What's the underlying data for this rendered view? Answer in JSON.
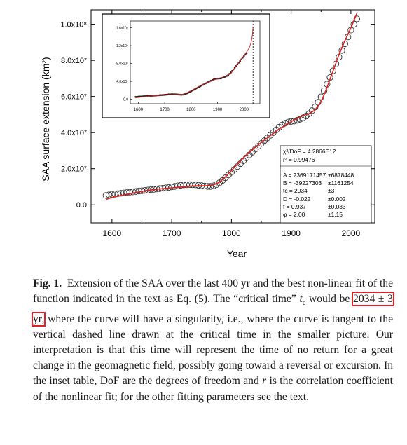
{
  "chart_data": {
    "type": "scatter",
    "xlabel": "Year",
    "ylabel": "SAA surface extension (km²)",
    "xlim": [
      1565,
      2040
    ],
    "ylim": [
      -10000000.0,
      108000000.0
    ],
    "x_ticks": [
      1600,
      1700,
      1800,
      1900,
      2000
    ],
    "x_tick_labels": [
      "1600",
      "1700",
      "1800",
      "1900",
      "2000"
    ],
    "y_ticks": [
      0,
      20000000.0,
      40000000.0,
      60000000.0,
      80000000.0,
      100000000.0
    ],
    "y_tick_labels": [
      "0.0",
      "2.0x10⁷",
      "4.0x10⁷",
      "6.0x10⁷",
      "8.0x10⁷",
      "1.0x10⁸"
    ],
    "series": [
      {
        "marker": "open-circle",
        "x": [
          1590,
          1595,
          1600,
          1605,
          1610,
          1615,
          1620,
          1625,
          1630,
          1635,
          1640,
          1645,
          1650,
          1655,
          1660,
          1665,
          1670,
          1675,
          1680,
          1685,
          1690,
          1695,
          1700,
          1705,
          1710,
          1715,
          1720,
          1725,
          1730,
          1735,
          1740,
          1745,
          1750,
          1755,
          1760,
          1765,
          1770,
          1775,
          1780,
          1785,
          1790,
          1795,
          1800,
          1805,
          1810,
          1815,
          1820,
          1825,
          1830,
          1835,
          1840,
          1845,
          1850,
          1855,
          1860,
          1865,
          1870,
          1875,
          1880,
          1885,
          1890,
          1895,
          1900,
          1905,
          1910,
          1915,
          1920,
          1925,
          1930,
          1935,
          1940,
          1945,
          1950,
          1955,
          1960,
          1965,
          1970,
          1975,
          1980,
          1985,
          1990,
          1995,
          2000,
          2005,
          2010
        ],
        "y": [
          5200000.0,
          5500000.0,
          5800000.0,
          6000000.0,
          6200000.0,
          6400000.0,
          6600000.0,
          6800000.0,
          7000000.0,
          7200000.0,
          7400000.0,
          7600000.0,
          7800000.0,
          8000000.0,
          8200000.0,
          8400000.0,
          8600000.0,
          8800000.0,
          9000000.0,
          9200000.0,
          9400000.0,
          9600000.0,
          9900000.0,
          10200000.0,
          10500000.0,
          10800000.0,
          11000000.0,
          11100000.0,
          11200000.0,
          11100000.0,
          11000000.0,
          10800000.0,
          10600000.0,
          10400000.0,
          10200000.0,
          10200000.0,
          10500000.0,
          11200000.0,
          12200000.0,
          13500000.0,
          15000000.0,
          16500000.0,
          18000000.0,
          19600000.0,
          21200000.0,
          22800000.0,
          24400000.0,
          26000000.0,
          27600000.0,
          29200000.0,
          30800000.0,
          32400000.0,
          34000000.0,
          35500000.0,
          37000000.0,
          38500000.0,
          40000000.0,
          41500000.0,
          43000000.0,
          44200000.0,
          45200000.0,
          45800000.0,
          46200000.0,
          46400000.0,
          46800000.0,
          47400000.0,
          48200000.0,
          49200000.0,
          50500000.0,
          52200000.0,
          54200000.0,
          56800000.0,
          59800000.0,
          63200000.0,
          66800000.0,
          70500000.0,
          74200000.0,
          78000000.0,
          81800000.0,
          85500000.0,
          89200000.0,
          93000000.0,
          96800000.0,
          100000000.0,
          103000000.0
        ]
      },
      {
        "marker": "line",
        "color": "#e02020",
        "x": [
          1590,
          1600,
          1620,
          1640,
          1660,
          1680,
          1700,
          1720,
          1740,
          1760,
          1770,
          1780,
          1790,
          1800,
          1810,
          1820,
          1830,
          1840,
          1850,
          1860,
          1870,
          1880,
          1890,
          1900,
          1910,
          1920,
          1930,
          1940,
          1950,
          1960,
          1970,
          1980,
          1990,
          2000,
          2010
        ],
        "y": [
          3000000.0,
          4000000.0,
          5500000.0,
          6800000.0,
          8000000.0,
          8800000.0,
          9400000.0,
          10000000.0,
          10500000.0,
          10600000.0,
          11000000.0,
          12500000.0,
          15500000.0,
          19000000.0,
          22500000.0,
          26000000.0,
          29000000.0,
          32000000.0,
          34500000.0,
          37000000.0,
          39500000.0,
          42000000.0,
          44000000.0,
          46000000.0,
          48000000.0,
          49500000.0,
          50500000.0,
          52500000.0,
          57000000.0,
          65000000.0,
          74000000.0,
          83000000.0,
          91000000.0,
          98000000.0,
          106000000.0
        ]
      }
    ],
    "fit_table": {
      "rows": [
        {
          "label": "χ²/DoF = 4.2866E12",
          "err": ""
        },
        {
          "label": "r²         = 0.99476",
          "err": ""
        },
        {
          "label": "A = 2369171457",
          "err": "±6878448"
        },
        {
          "label": "B = -39227303",
          "err": "±1161254"
        },
        {
          "label": "tc = 2034",
          "err": "±3"
        },
        {
          "label": "D = -0.022",
          "err": "±0.002"
        },
        {
          "label": "f =  0.937",
          "err": "±0.033"
        },
        {
          "label": "φ =  2.00",
          "err": "±1.15"
        }
      ]
    },
    "inset": {
      "xlim": [
        1570,
        2060
      ],
      "ylim": [
        -10000000.0,
        175000000.0
      ],
      "x_ticks": [
        1600,
        1700,
        1800,
        1900,
        2000
      ],
      "x_tick_labels": [
        "1600",
        "1700",
        "1800",
        "1900",
        "2000"
      ],
      "y_ticks": [
        0,
        40000000.0,
        80000000.0,
        120000000.0,
        160000000.0
      ],
      "y_tick_labels": [
        "0.0",
        "4.0x10⁷",
        "8.0x10⁷",
        "1.2x10⁸",
        "1.6x10⁸"
      ],
      "critical_time": 2034,
      "fit_x": [
        1590,
        1620,
        1660,
        1700,
        1740,
        1770,
        1800,
        1830,
        1860,
        1890,
        1920,
        1950,
        1980,
        2000,
        2010,
        2020,
        2028,
        2032,
        2034
      ],
      "fit_y": [
        3000000.0,
        5500000.0,
        8000000.0,
        9400000.0,
        10500000.0,
        11000000.0,
        19000000.0,
        29000000.0,
        37000000.0,
        44000000.0,
        49500000.0,
        57000000.0,
        83000000.0,
        98000000.0,
        106000000.0,
        115000000.0,
        130000000.0,
        145000000.0,
        162000000.0
      ]
    }
  },
  "caption": {
    "label": "Fig. 1.",
    "text1": "Extension of the SAA over the last 400 yr and the best non-linear fit of the function indicated in the text as Eq. (5). The “critical time” ",
    "tc_var": "t",
    "tc_sub": "c",
    "text2": " would be ",
    "highlight": "2034 ± 3 yr,",
    "text3": " where the curve will have a singularity, i.e., where the curve is tangent to the vertical dashed line drawn at the critical time in the smaller picture. Our interpretation is that this time will represent the time of no return for a great change in the geomagnetic field, possibly going toward a reversal or excursion. In the inset table, DoF are the degrees of freedom and ",
    "r_var": "r",
    "text4": " is the correlation coefficient of the nonlinear fit; for the other fitting parameters see the text."
  },
  "colors": {
    "fit_line": "#e02020",
    "highlight_box": "#e0202a"
  }
}
